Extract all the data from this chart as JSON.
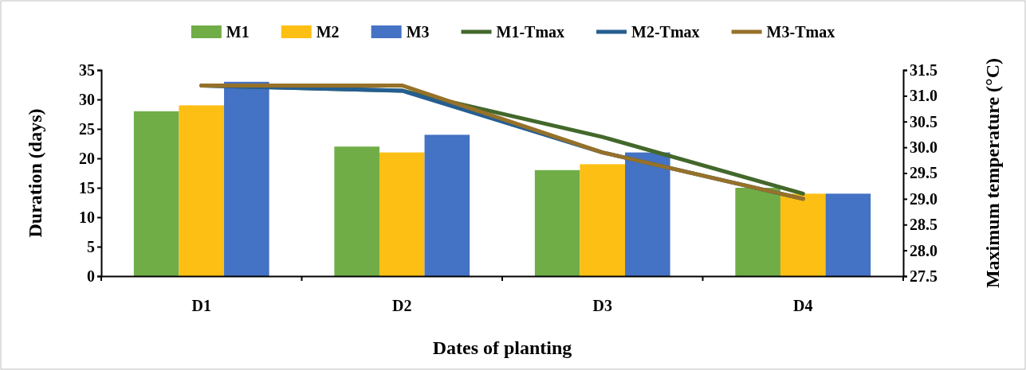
{
  "chart_data": {
    "type": "bar",
    "xlabel": "Dates of planting",
    "ylabel": "Duration (days)",
    "y2label": "Maximum temperature (°C)",
    "categories": [
      "D1",
      "D2",
      "D3",
      "D4"
    ],
    "series": [
      {
        "name": "M1",
        "color": "#70ad47",
        "values": [
          28,
          22,
          18,
          15
        ]
      },
      {
        "name": "M2",
        "color": "#fdbf14",
        "values": [
          29,
          21,
          19,
          14
        ]
      },
      {
        "name": "M3",
        "color": "#4472c4",
        "values": [
          33,
          24,
          21,
          14
        ]
      },
      {
        "name": "M1-Tmax",
        "type": "line",
        "axis": "y2",
        "color": "#43682b",
        "values": [
          31.2,
          31.1,
          30.2,
          29.1
        ]
      },
      {
        "name": "M2-Tmax",
        "type": "line",
        "axis": "y2",
        "color": "#255e91",
        "values": [
          31.2,
          31.1,
          29.9,
          29.0
        ]
      },
      {
        "name": "M3-Tmax",
        "type": "line",
        "axis": "y2",
        "color": "#967129",
        "values": [
          31.2,
          31.2,
          29.9,
          29.0
        ]
      }
    ],
    "ylim": [
      0,
      35
    ],
    "yticks": [
      0,
      5,
      10,
      15,
      20,
      25,
      30,
      35
    ],
    "y2lim": [
      27.5,
      31.5
    ],
    "y2ticks": [
      {
        "value": 27.5,
        "label": "27.5"
      },
      {
        "value": 28,
        "label": "28.0"
      },
      {
        "value": 28.5,
        "label": "28.5"
      },
      {
        "value": 29,
        "label": "29.0"
      },
      {
        "value": 29.5,
        "label": "29.5"
      },
      {
        "value": 30,
        "label": "30.0"
      },
      {
        "value": 30.5,
        "label": "30.5"
      },
      {
        "value": 31,
        "label": "31.0"
      },
      {
        "value": 31.5,
        "label": "31.5"
      }
    ],
    "legend": "top"
  }
}
